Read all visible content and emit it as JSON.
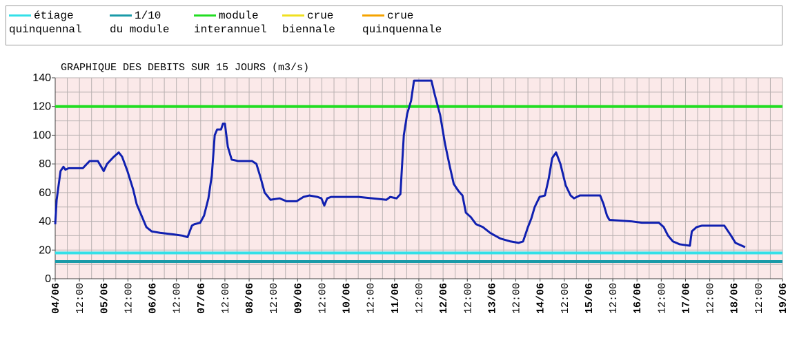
{
  "chart_data": {
    "type": "line",
    "title": "GRAPHIQUE DES DEBITS SUR 15 JOURS (m3/s)",
    "reference_lines": [
      {
        "name": "étiage\nquinquennal",
        "color": "#33e0e8",
        "value": 18
      },
      {
        "name": "1/10\ndu module",
        "color": "#1a9aa8",
        "value": 12
      },
      {
        "name": "module\ninterannuel",
        "color": "#22dd22",
        "value": 120
      },
      {
        "name": "crue\nbiennale",
        "color": "#f0e020",
        "value": null
      },
      {
        "name": "crue\nquinquennale",
        "color": "#f5a300",
        "value": null
      }
    ],
    "series": [
      {
        "color": "#1020b0",
        "x": [
          0,
          0.03,
          0.11,
          0.17,
          0.21,
          0.28,
          0.57,
          0.71,
          0.88,
          0.95,
          1.0,
          1.07,
          1.21,
          1.31,
          1.38,
          1.49,
          1.61,
          1.68,
          1.78,
          1.88,
          1.99,
          2.16,
          2.42,
          2.63,
          2.73,
          2.82,
          2.87,
          2.99,
          3.07,
          3.16,
          3.23,
          3.29,
          3.34,
          3.42,
          3.46,
          3.5,
          3.56,
          3.64,
          3.77,
          4.06,
          4.15,
          4.24,
          4.32,
          4.44,
          4.63,
          4.77,
          4.98,
          5.12,
          5.24,
          5.41,
          5.49,
          5.55,
          5.61,
          5.69,
          6.12,
          6.26,
          6.55,
          6.83,
          6.91,
          7.04,
          7.12,
          7.19,
          7.26,
          7.34,
          7.4,
          7.76,
          7.83,
          7.94,
          8.04,
          8.14,
          8.22,
          8.32,
          8.4,
          8.47,
          8.57,
          8.68,
          8.82,
          8.97,
          9.18,
          9.39,
          9.56,
          9.65,
          9.75,
          9.82,
          9.89,
          9.99,
          10.1,
          10.18,
          10.25,
          10.33,
          10.42,
          10.53,
          10.63,
          10.7,
          10.82,
          11.24,
          11.31,
          11.38,
          11.43,
          11.88,
          12.1,
          12.45,
          12.55,
          12.64,
          12.74,
          12.88,
          13.09,
          13.13,
          13.23,
          13.34,
          13.8,
          13.94,
          14.03,
          14.23
        ],
        "values": [
          38,
          55,
          75,
          78,
          76,
          77,
          77,
          82,
          82,
          78,
          75,
          80,
          85,
          88,
          85,
          75,
          62,
          52,
          44,
          36,
          33,
          32,
          31,
          30,
          29,
          37,
          38,
          39,
          44,
          56,
          72,
          100,
          104,
          104,
          108,
          108,
          92,
          83,
          82,
          82,
          80,
          70,
          60,
          55,
          56,
          54,
          54,
          57,
          58,
          57,
          56,
          51,
          56,
          57,
          57,
          57,
          56,
          55,
          57,
          56,
          59,
          100,
          115,
          124,
          138,
          138,
          128,
          114,
          94,
          78,
          66,
          61,
          58,
          46,
          43,
          38,
          36,
          32,
          28,
          26,
          25,
          26,
          36,
          42,
          50,
          57,
          58,
          70,
          84,
          88,
          80,
          65,
          58,
          56,
          58,
          58,
          52,
          44,
          41,
          40,
          39,
          39,
          36,
          30,
          26,
          24,
          23,
          33,
          36,
          37,
          37,
          30,
          25,
          22
        ]
      }
    ],
    "xlim": [
      0,
      15
    ],
    "xticks": [
      {
        "value": 0,
        "label": "04/06"
      },
      {
        "value": 0.5,
        "label": "12:00"
      },
      {
        "value": 1,
        "label": "05/06"
      },
      {
        "value": 1.5,
        "label": "12:00"
      },
      {
        "value": 2,
        "label": "06/06"
      },
      {
        "value": 2.5,
        "label": "12:00"
      },
      {
        "value": 3,
        "label": "07/06"
      },
      {
        "value": 3.5,
        "label": "12:00"
      },
      {
        "value": 4,
        "label": "08/06"
      },
      {
        "value": 4.5,
        "label": "12:00"
      },
      {
        "value": 5,
        "label": "09/06"
      },
      {
        "value": 5.5,
        "label": "12:00"
      },
      {
        "value": 6,
        "label": "10/06"
      },
      {
        "value": 6.5,
        "label": "12:00"
      },
      {
        "value": 7,
        "label": "11/06"
      },
      {
        "value": 7.5,
        "label": "12:00"
      },
      {
        "value": 8,
        "label": "12/06"
      },
      {
        "value": 8.5,
        "label": "12:00"
      },
      {
        "value": 9,
        "label": "13/06"
      },
      {
        "value": 9.5,
        "label": "12:00"
      },
      {
        "value": 10,
        "label": "14/06"
      },
      {
        "value": 10.5,
        "label": "12:00"
      },
      {
        "value": 11,
        "label": "15/06"
      },
      {
        "value": 11.5,
        "label": "12:00"
      },
      {
        "value": 12,
        "label": "16/06"
      },
      {
        "value": 12.5,
        "label": "12:00"
      },
      {
        "value": 13,
        "label": "17/06"
      },
      {
        "value": 13.5,
        "label": "12:00"
      },
      {
        "value": 14,
        "label": "18/06"
      },
      {
        "value": 14.5,
        "label": "12:00"
      },
      {
        "value": 15,
        "label": "19/06"
      }
    ],
    "xminor": [
      0.25,
      0.75,
      1.25,
      1.75,
      2.25,
      2.75,
      3.25,
      3.75,
      4.25,
      4.75,
      5.25,
      5.75,
      6.25,
      6.75,
      7.25,
      7.75,
      8.25,
      8.75,
      9.25,
      9.75,
      10.25,
      10.75,
      11.25,
      11.75,
      12.25,
      12.75,
      13.25,
      13.75,
      14.25,
      14.75
    ],
    "ylim": [
      0,
      140
    ],
    "yticks": [
      0,
      20,
      40,
      60,
      80,
      100,
      120,
      140
    ],
    "yminor": [
      10,
      30,
      50,
      70,
      90,
      110,
      130
    ],
    "grid": true
  }
}
